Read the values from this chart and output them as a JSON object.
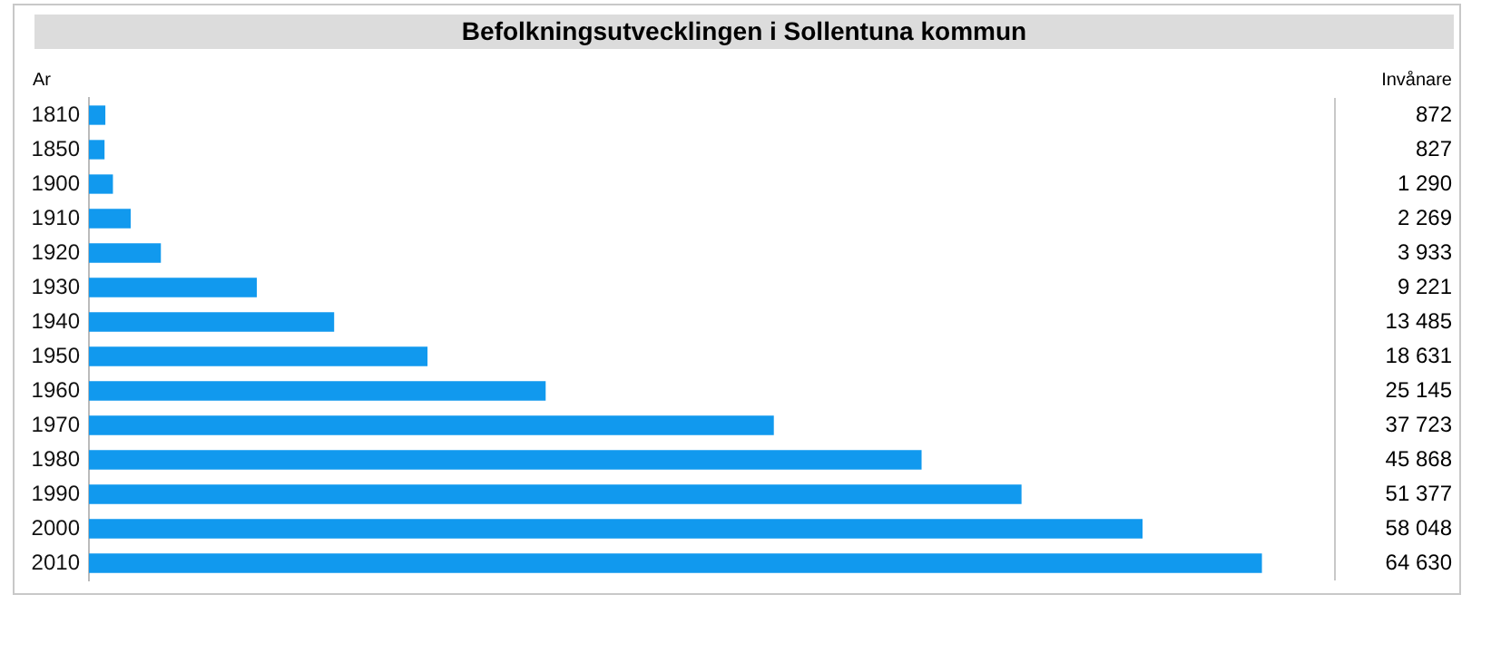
{
  "chart_data": {
    "type": "bar",
    "orientation": "horizontal",
    "title": "Befolkningsutvecklingen i Sollentuna kommun",
    "ylabel": "Ar",
    "annotations": [
      "Invånare"
    ],
    "categories": [
      "1810",
      "1850",
      "1900",
      "1910",
      "1920",
      "1930",
      "1940",
      "1950",
      "1960",
      "1970",
      "1980",
      "1990",
      "2000",
      "2010"
    ],
    "values": [
      872,
      827,
      1290,
      2269,
      3933,
      9221,
      13485,
      18631,
      25145,
      37723,
      45868,
      51377,
      58048,
      64630
    ],
    "value_labels": [
      "872",
      "827",
      "1 290",
      "2 269",
      "3 933",
      "9 221",
      "13 485",
      "18 631",
      "25 145",
      "37 723",
      "45 868",
      "51 377",
      "58 048",
      "64 630"
    ],
    "color": "#1199ee",
    "grid": false,
    "legend": false
  }
}
